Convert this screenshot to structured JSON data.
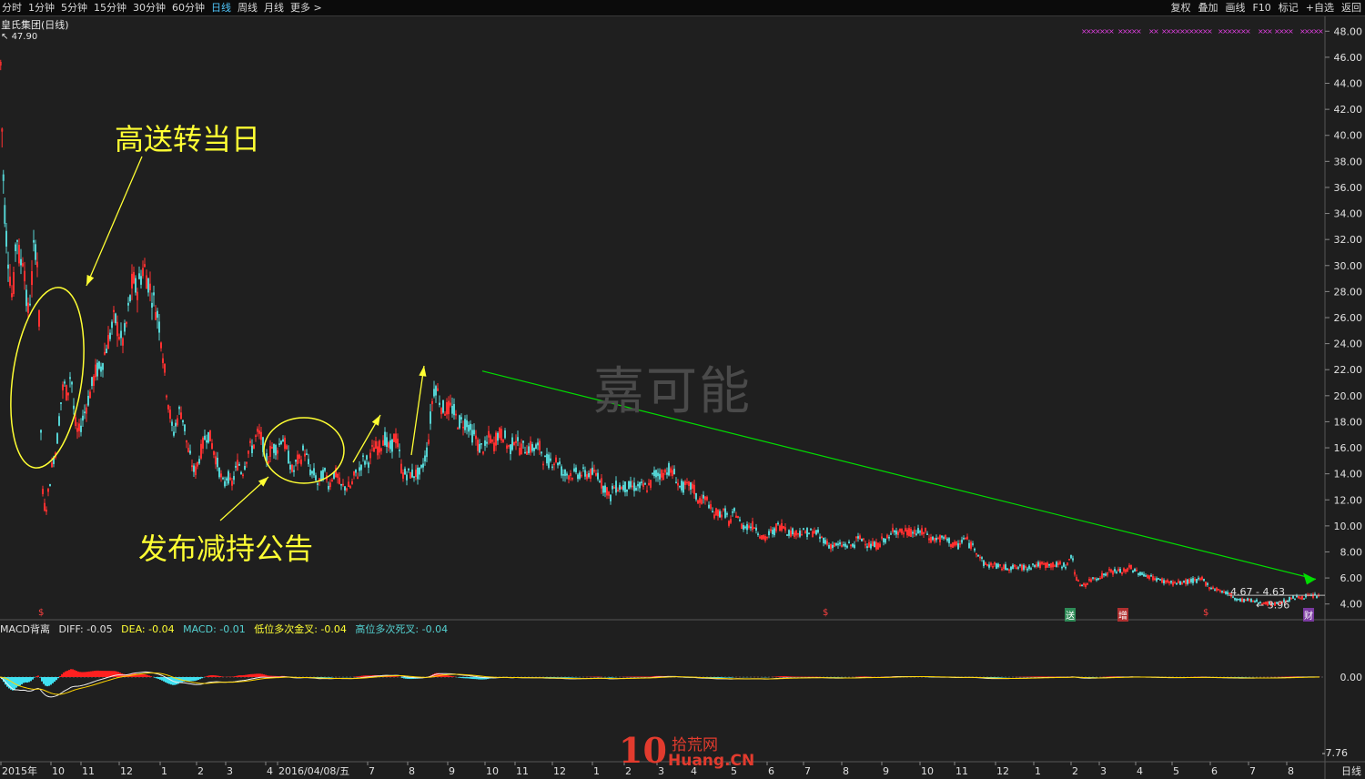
{
  "toolbar": {
    "tabs": [
      "分时",
      "1分钟",
      "5分钟",
      "15分钟",
      "30分钟",
      "60分钟",
      "日线",
      "周线",
      "月线",
      "更多 >"
    ],
    "active_tab": "日线",
    "tools": [
      "复权",
      "叠加",
      "画线",
      "F10",
      "标记",
      "+自选",
      "返回"
    ]
  },
  "stock_name": "皇氏集团(日线)",
  "high_label": "47.90",
  "watermark": "嘉可能",
  "annotations": {
    "top": "高送转当日",
    "bottom": "发布减持公告"
  },
  "price_panel": {
    "range_label": "4.67 - 4.63",
    "low_label": "3.96"
  },
  "macd_legend": {
    "name": "MACD背离",
    "diff": "DIFF: -0.05",
    "dea": "DEA: -0.04",
    "macd": "MACD: -0.01",
    "golden": "低位多次金叉: -0.04",
    "dead": "高位多次死叉: -0.04"
  },
  "macd_axis": {
    "zero": "0.00",
    "bottom": "-7.76"
  },
  "badges": [
    "送",
    "增",
    "财"
  ],
  "period_label": "日线",
  "logo": {
    "big": "10",
    "cn": "拾荒网",
    "en": "Huang.CN"
  },
  "colors": {
    "up": "#ff3030",
    "down": "#54d2d2",
    "trend": "#00dd00",
    "annotation": "#ffff33"
  },
  "chart_data": {
    "type": "candlestick",
    "title": "皇氏集团(日线)",
    "ylim": [
      3.0,
      49.0
    ],
    "y_ticks": [
      "48.00",
      "46.00",
      "44.00",
      "42.00",
      "40.00",
      "38.00",
      "36.00",
      "34.00",
      "32.00",
      "30.00",
      "28.00",
      "26.00",
      "24.00",
      "22.00",
      "20.00",
      "18.00",
      "16.00",
      "14.00",
      "12.00",
      "10.00",
      "8.00",
      "6.00",
      "4.00"
    ],
    "x_labels": [
      "2015年",
      "10",
      "11",
      "12",
      "1",
      "2",
      "3",
      "4",
      "2016/04/08/五",
      "7",
      "8",
      "9",
      "10",
      "11",
      "12",
      "1",
      "2",
      "3",
      "4",
      "5",
      "6",
      "7",
      "8",
      "9",
      "10",
      "11",
      "12",
      "1",
      "2",
      "3",
      "4",
      "5",
      "6",
      "7",
      "8"
    ],
    "price_path": [
      [
        0,
        47.9
      ],
      [
        3,
        38
      ],
      [
        6,
        33
      ],
      [
        10,
        30
      ],
      [
        14,
        27
      ],
      [
        18,
        33
      ],
      [
        22,
        30
      ],
      [
        26,
        31
      ],
      [
        30,
        26
      ],
      [
        34,
        28
      ],
      [
        38,
        32
      ],
      [
        42,
        30
      ],
      [
        46,
        13
      ],
      [
        50,
        11
      ],
      [
        54,
        13
      ],
      [
        58,
        15
      ],
      [
        62,
        16
      ],
      [
        66,
        19
      ],
      [
        70,
        21
      ],
      [
        74,
        20
      ],
      [
        78,
        22
      ],
      [
        82,
        18
      ],
      [
        86,
        17
      ],
      [
        90,
        18
      ],
      [
        94,
        19
      ],
      [
        98,
        20
      ],
      [
        102,
        21
      ],
      [
        106,
        22
      ],
      [
        110,
        22
      ],
      [
        114,
        23
      ],
      [
        118,
        24
      ],
      [
        122,
        25
      ],
      [
        126,
        26
      ],
      [
        130,
        25
      ],
      [
        134,
        24
      ],
      [
        138,
        25
      ],
      [
        142,
        27
      ],
      [
        146,
        29
      ],
      [
        150,
        28
      ],
      [
        154,
        29
      ],
      [
        158,
        30
      ],
      [
        162,
        29
      ],
      [
        166,
        28
      ],
      [
        170,
        27
      ],
      [
        174,
        26
      ],
      [
        178,
        24
      ],
      [
        182,
        21
      ],
      [
        186,
        19
      ],
      [
        190,
        17
      ],
      [
        194,
        18
      ],
      [
        198,
        19
      ],
      [
        202,
        18
      ],
      [
        206,
        16
      ],
      [
        210,
        15
      ],
      [
        214,
        14
      ],
      [
        218,
        15
      ],
      [
        222,
        16
      ],
      [
        226,
        17
      ],
      [
        230,
        17
      ],
      [
        234,
        16
      ],
      [
        238,
        15
      ],
      [
        242,
        14
      ],
      [
        246,
        13
      ],
      [
        250,
        14
      ],
      [
        254,
        13
      ],
      [
        258,
        14
      ],
      [
        262,
        15
      ],
      [
        266,
        14
      ],
      [
        270,
        15
      ],
      [
        274,
        16
      ],
      [
        278,
        16
      ],
      [
        282,
        17
      ],
      [
        286,
        17
      ],
      [
        290,
        16
      ],
      [
        294,
        15
      ],
      [
        298,
        16
      ],
      [
        302,
        16
      ],
      [
        306,
        16
      ],
      [
        310,
        17
      ],
      [
        314,
        16
      ],
      [
        318,
        15
      ],
      [
        322,
        14
      ],
      [
        326,
        15
      ],
      [
        330,
        15
      ],
      [
        334,
        16
      ],
      [
        338,
        15
      ],
      [
        342,
        14
      ],
      [
        346,
        14
      ],
      [
        350,
        13
      ],
      [
        354,
        14
      ],
      [
        358,
        14
      ],
      [
        362,
        13
      ],
      [
        366,
        14
      ],
      [
        370,
        14
      ],
      [
        374,
        13
      ],
      [
        378,
        13
      ],
      [
        382,
        13
      ],
      [
        386,
        13
      ],
      [
        390,
        14
      ],
      [
        394,
        14
      ],
      [
        398,
        15
      ],
      [
        402,
        15
      ],
      [
        406,
        15
      ],
      [
        410,
        16
      ],
      [
        414,
        16
      ],
      [
        418,
        16
      ],
      [
        422,
        17
      ],
      [
        426,
        16
      ],
      [
        430,
        16
      ],
      [
        434,
        17
      ],
      [
        438,
        16
      ],
      [
        442,
        14
      ],
      [
        446,
        14
      ],
      [
        450,
        14
      ],
      [
        454,
        14
      ],
      [
        458,
        14
      ],
      [
        462,
        14
      ],
      [
        466,
        15
      ],
      [
        470,
        16
      ],
      [
        474,
        19
      ],
      [
        478,
        21
      ],
      [
        482,
        20
      ],
      [
        486,
        19
      ],
      [
        490,
        19
      ],
      [
        494,
        19
      ],
      [
        498,
        19
      ],
      [
        502,
        18
      ],
      [
        506,
        18
      ],
      [
        510,
        18
      ],
      [
        514,
        18
      ],
      [
        518,
        17
      ],
      [
        522,
        17
      ],
      [
        526,
        16
      ],
      [
        530,
        16
      ],
      [
        534,
        16
      ],
      [
        538,
        17
      ],
      [
        542,
        16
      ],
      [
        546,
        17
      ],
      [
        550,
        17
      ],
      [
        554,
        17
      ],
      [
        558,
        16
      ],
      [
        562,
        16
      ],
      [
        566,
        17
      ],
      [
        570,
        16
      ],
      [
        574,
        16
      ],
      [
        578,
        16
      ],
      [
        582,
        16
      ],
      [
        586,
        16
      ],
      [
        590,
        16
      ],
      [
        594,
        16
      ],
      [
        598,
        15
      ],
      [
        602,
        15
      ],
      [
        606,
        15
      ],
      [
        610,
        15
      ],
      [
        614,
        15
      ],
      [
        618,
        14
      ],
      [
        622,
        14
      ],
      [
        626,
        14
      ],
      [
        630,
        14
      ],
      [
        634,
        14
      ],
      [
        638,
        14
      ],
      [
        642,
        14
      ],
      [
        646,
        14
      ],
      [
        650,
        14
      ],
      [
        654,
        14
      ],
      [
        658,
        14
      ],
      [
        662,
        13
      ],
      [
        666,
        13
      ],
      [
        670,
        12
      ],
      [
        674,
        13
      ],
      [
        678,
        13
      ],
      [
        682,
        13
      ],
      [
        686,
        13
      ],
      [
        690,
        13
      ],
      [
        694,
        13
      ],
      [
        698,
        13
      ],
      [
        702,
        13
      ],
      [
        706,
        13
      ],
      [
        710,
        13
      ],
      [
        714,
        13
      ],
      [
        718,
        14
      ],
      [
        722,
        14
      ],
      [
        726,
        14
      ],
      [
        730,
        14
      ],
      [
        734,
        14.5
      ],
      [
        738,
        14
      ],
      [
        742,
        14
      ],
      [
        746,
        13
      ],
      [
        750,
        13
      ],
      [
        754,
        13
      ],
      [
        758,
        13
      ],
      [
        762,
        13
      ],
      [
        766,
        12
      ],
      [
        770,
        12
      ],
      [
        774,
        12
      ],
      [
        778,
        12
      ],
      [
        782,
        11
      ],
      [
        786,
        11
      ],
      [
        790,
        11
      ],
      [
        794,
        11
      ],
      [
        798,
        11
      ],
      [
        802,
        10
      ],
      [
        806,
        11
      ],
      [
        810,
        11
      ],
      [
        814,
        10
      ],
      [
        818,
        10
      ],
      [
        822,
        10
      ],
      [
        826,
        10
      ],
      [
        830,
        10
      ],
      [
        834,
        9.5
      ],
      [
        838,
        9
      ],
      [
        842,
        9
      ],
      [
        846,
        9.5
      ],
      [
        850,
        9.5
      ],
      [
        854,
        10
      ],
      [
        858,
        10
      ],
      [
        862,
        10
      ],
      [
        866,
        9.5
      ],
      [
        870,
        9.5
      ],
      [
        874,
        9.5
      ],
      [
        878,
        9.5
      ],
      [
        882,
        9.5
      ],
      [
        886,
        9.5
      ],
      [
        890,
        9.5
      ],
      [
        894,
        9.5
      ],
      [
        898,
        9.5
      ],
      [
        902,
        9
      ],
      [
        906,
        9
      ],
      [
        910,
        8.5
      ],
      [
        914,
        8.5
      ],
      [
        918,
        8.5
      ],
      [
        922,
        8.5
      ],
      [
        926,
        8.5
      ],
      [
        930,
        8.5
      ],
      [
        934,
        8.5
      ],
      [
        938,
        8.5
      ],
      [
        942,
        9
      ],
      [
        946,
        9
      ],
      [
        950,
        9
      ],
      [
        954,
        8.5
      ],
      [
        958,
        8.5
      ],
      [
        962,
        8.5
      ],
      [
        966,
        8.5
      ],
      [
        970,
        9
      ],
      [
        974,
        9
      ],
      [
        978,
        9
      ],
      [
        982,
        10
      ],
      [
        986,
        9.5
      ],
      [
        990,
        9.5
      ],
      [
        994,
        9.5
      ],
      [
        998,
        9.5
      ],
      [
        1002,
        9.5
      ],
      [
        1006,
        9.5
      ],
      [
        1010,
        9.5
      ],
      [
        1014,
        9.5
      ],
      [
        1018,
        9.5
      ],
      [
        1022,
        9
      ],
      [
        1026,
        9
      ],
      [
        1030,
        9
      ],
      [
        1034,
        9
      ],
      [
        1038,
        9
      ],
      [
        1042,
        9
      ],
      [
        1046,
        8.5
      ],
      [
        1050,
        8.5
      ],
      [
        1054,
        8.5
      ],
      [
        1058,
        9
      ],
      [
        1062,
        9
      ],
      [
        1066,
        8.5
      ],
      [
        1070,
        8.5
      ],
      [
        1074,
        8
      ],
      [
        1078,
        7.5
      ],
      [
        1082,
        7
      ],
      [
        1086,
        7
      ],
      [
        1090,
        7
      ],
      [
        1094,
        7
      ],
      [
        1098,
        6.8
      ],
      [
        1102,
        6.8
      ],
      [
        1106,
        6.8
      ],
      [
        1110,
        6.8
      ],
      [
        1114,
        6.8
      ],
      [
        1118,
        6.8
      ],
      [
        1122,
        6.8
      ],
      [
        1126,
        6.8
      ],
      [
        1130,
        6.8
      ],
      [
        1134,
        7
      ],
      [
        1138,
        7
      ],
      [
        1142,
        7
      ],
      [
        1146,
        7
      ],
      [
        1150,
        7
      ],
      [
        1154,
        7
      ],
      [
        1158,
        7
      ],
      [
        1162,
        7
      ],
      [
        1166,
        7
      ],
      [
        1170,
        7
      ],
      [
        1174,
        7
      ],
      [
        1178,
        8
      ],
      [
        1182,
        6
      ],
      [
        1186,
        5.5
      ],
      [
        1190,
        5.5
      ],
      [
        1194,
        5.5
      ],
      [
        1198,
        5.8
      ],
      [
        1202,
        6
      ],
      [
        1206,
        6
      ],
      [
        1210,
        6.2
      ],
      [
        1214,
        6.2
      ],
      [
        1218,
        6.5
      ],
      [
        1222,
        6.5
      ],
      [
        1226,
        6.5
      ],
      [
        1230,
        6.5
      ],
      [
        1234,
        6.5
      ],
      [
        1238,
        6.5
      ],
      [
        1242,
        7
      ],
      [
        1246,
        6.5
      ],
      [
        1250,
        6.5
      ],
      [
        1254,
        6.3
      ],
      [
        1258,
        6.2
      ],
      [
        1262,
        6.2
      ],
      [
        1266,
        6
      ],
      [
        1270,
        6
      ],
      [
        1274,
        5.8
      ],
      [
        1278,
        5.8
      ],
      [
        1282,
        5.7
      ],
      [
        1286,
        5.7
      ],
      [
        1290,
        5.6
      ],
      [
        1294,
        5.6
      ],
      [
        1298,
        5.6
      ],
      [
        1302,
        5.7
      ],
      [
        1306,
        5.7
      ],
      [
        1310,
        5.8
      ],
      [
        1314,
        5.8
      ],
      [
        1318,
        5.8
      ],
      [
        1322,
        5.9
      ],
      [
        1326,
        5.5
      ],
      [
        1330,
        5.3
      ],
      [
        1334,
        5.2
      ],
      [
        1338,
        5.1
      ],
      [
        1342,
        5.0
      ],
      [
        1346,
        4.9
      ],
      [
        1350,
        4.8
      ],
      [
        1354,
        4.6
      ],
      [
        1358,
        4.4
      ],
      [
        1362,
        4.3
      ],
      [
        1366,
        4.3
      ],
      [
        1370,
        4.3
      ],
      [
        1374,
        4.3
      ],
      [
        1378,
        4.2
      ],
      [
        1382,
        4.2
      ],
      [
        1386,
        4.1
      ],
      [
        1390,
        4.1
      ],
      [
        1394,
        4.0
      ],
      [
        1398,
        4.0
      ],
      [
        1402,
        4.0
      ],
      [
        1406,
        4.1
      ],
      [
        1410,
        4.2
      ],
      [
        1414,
        4.3
      ],
      [
        1418,
        4.4
      ],
      [
        1422,
        4.5
      ],
      [
        1426,
        4.5
      ],
      [
        1430,
        4.5
      ],
      [
        1434,
        4.6
      ],
      [
        1438,
        4.6
      ],
      [
        1442,
        4.6
      ],
      [
        1446,
        4.6
      ],
      [
        1450,
        4.63
      ]
    ],
    "trend_line": {
      "from": [
        530,
        21.9
      ],
      "to": [
        1446,
        5.9
      ]
    }
  }
}
